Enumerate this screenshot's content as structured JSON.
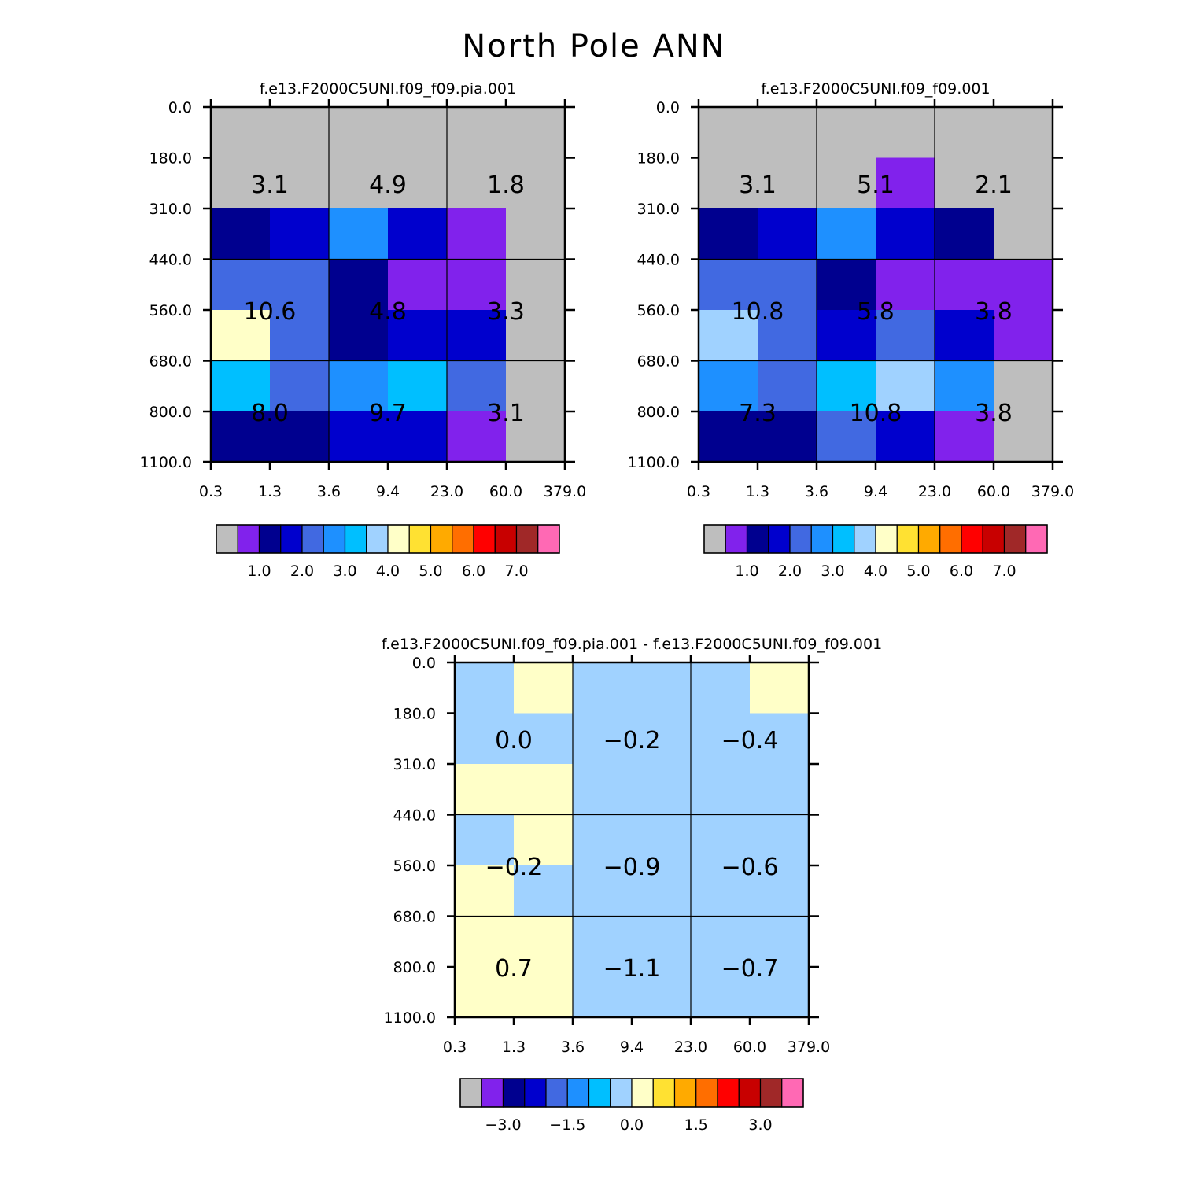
{
  "title": "North Pole ANN",
  "palette": [
    "#bebebe",
    "#8122ec",
    "#00008f",
    "#0000cd",
    "#4169e1",
    "#1e90ff",
    "#00bfff",
    "#a0d2ff",
    "#ffffc8",
    "#ffe132",
    "#ffaa00",
    "#ff6e00",
    "#ff0000",
    "#c80000",
    "#a02828",
    "#ff69b4"
  ],
  "chart_data": [
    {
      "type": "heatmap",
      "title": "f.e13.F2000C5UNI.f09_f09.pia.001",
      "x_ticks": [
        "0.3",
        "1.3",
        "3.6",
        "9.4",
        "23.0",
        "60.0",
        "379.0"
      ],
      "y_ticks": [
        "0.0",
        "180.0",
        "310.0",
        "440.0",
        "560.0",
        "680.0",
        "800.0",
        "1100.0"
      ],
      "cell_colors": [
        [
          0,
          0,
          0,
          0,
          0,
          0
        ],
        [
          0,
          0,
          0,
          0,
          0,
          0
        ],
        [
          2,
          3,
          5,
          3,
          1,
          0
        ],
        [
          4,
          4,
          2,
          1,
          1,
          0
        ],
        [
          8,
          4,
          2,
          3,
          3,
          0
        ],
        [
          6,
          4,
          5,
          6,
          4,
          0
        ],
        [
          2,
          2,
          3,
          3,
          1,
          0
        ]
      ],
      "block_values": [
        [
          "3.1",
          "4.9",
          "1.8"
        ],
        [
          "10.6",
          "4.8",
          "3.3"
        ],
        [
          "8.0",
          "9.7",
          "3.1"
        ]
      ],
      "colorbar_labels": [
        "1.0",
        "2.0",
        "3.0",
        "4.0",
        "5.0",
        "6.0",
        "7.0"
      ]
    },
    {
      "type": "heatmap",
      "title": "f.e13.F2000C5UNI.f09_f09.001",
      "x_ticks": [
        "0.3",
        "1.3",
        "3.6",
        "9.4",
        "23.0",
        "60.0",
        "379.0"
      ],
      "y_ticks": [
        "0.0",
        "180.0",
        "310.0",
        "440.0",
        "560.0",
        "680.0",
        "800.0",
        "1100.0"
      ],
      "cell_colors": [
        [
          0,
          0,
          0,
          0,
          0,
          0
        ],
        [
          0,
          0,
          0,
          1,
          0,
          0
        ],
        [
          2,
          3,
          5,
          3,
          2,
          0
        ],
        [
          4,
          4,
          2,
          1,
          1,
          1
        ],
        [
          7,
          4,
          3,
          4,
          3,
          1
        ],
        [
          5,
          4,
          6,
          7,
          5,
          0
        ],
        [
          2,
          2,
          4,
          3,
          1,
          0
        ]
      ],
      "block_values": [
        [
          "3.1",
          "5.1",
          "2.1"
        ],
        [
          "10.8",
          "5.8",
          "3.8"
        ],
        [
          "7.3",
          "10.8",
          "3.8"
        ]
      ],
      "colorbar_labels": [
        "1.0",
        "2.0",
        "3.0",
        "4.0",
        "5.0",
        "6.0",
        "7.0"
      ]
    },
    {
      "type": "heatmap",
      "title": "f.e13.F2000C5UNI.f09_f09.pia.001 - f.e13.F2000C5UNI.f09_f09.001",
      "x_ticks": [
        "0.3",
        "1.3",
        "3.6",
        "9.4",
        "23.0",
        "60.0",
        "379.0"
      ],
      "y_ticks": [
        "0.0",
        "180.0",
        "310.0",
        "440.0",
        "560.0",
        "680.0",
        "800.0",
        "1100.0"
      ],
      "cell_colors": [
        [
          7,
          8,
          7,
          7,
          7,
          8
        ],
        [
          7,
          7,
          7,
          7,
          7,
          7
        ],
        [
          8,
          8,
          7,
          7,
          7,
          7
        ],
        [
          7,
          8,
          7,
          7,
          7,
          7
        ],
        [
          8,
          7,
          7,
          7,
          7,
          7
        ],
        [
          8,
          8,
          7,
          7,
          7,
          7
        ],
        [
          8,
          8,
          7,
          7,
          7,
          7
        ]
      ],
      "block_values": [
        [
          "0.0",
          "-0.2",
          "-0.4"
        ],
        [
          "-0.2",
          "-0.9",
          "-0.6"
        ],
        [
          "0.7",
          "-1.1",
          "-0.7"
        ]
      ],
      "colorbar_labels": [
        "-3.0",
        "-1.5",
        "0.0",
        "1.5",
        "3.0"
      ]
    }
  ]
}
